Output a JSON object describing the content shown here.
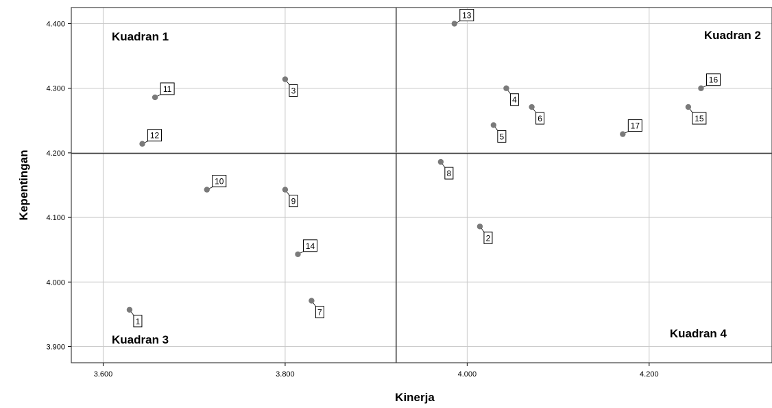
{
  "chart_data": {
    "type": "scatter",
    "xlabel": "Kinerja",
    "ylabel": "Kepentingan",
    "xlim": [
      3.565,
      4.335
    ],
    "ylim": [
      3.875,
      4.425
    ],
    "x_ticks": [
      "3.600",
      "3.800",
      "4.000",
      "4.200"
    ],
    "y_ticks": [
      "3.900",
      "4.000",
      "4.100",
      "4.200",
      "4.300",
      "4.400"
    ],
    "x_tick_values": [
      3.6,
      3.8,
      4.0,
      4.2
    ],
    "y_tick_values": [
      3.9,
      4.0,
      4.1,
      4.2,
      4.3,
      4.4
    ],
    "grid": true,
    "reference_lines": {
      "x": 3.922,
      "y": 4.199
    },
    "quadrants": [
      {
        "label": "Kuadran 1",
        "position": "top-left"
      },
      {
        "label": "Kuadran 2",
        "position": "top-right"
      },
      {
        "label": "Kuadran 3",
        "position": "bottom-left"
      },
      {
        "label": "Kuadran 4",
        "position": "bottom-right"
      }
    ],
    "points": [
      {
        "label": "1",
        "x": 3.629,
        "y": 3.957,
        "label_pos": "below"
      },
      {
        "label": "2",
        "x": 4.014,
        "y": 4.086,
        "label_pos": "below"
      },
      {
        "label": "3",
        "x": 3.8,
        "y": 4.314,
        "label_pos": "below"
      },
      {
        "label": "4",
        "x": 4.043,
        "y": 4.3,
        "label_pos": "below"
      },
      {
        "label": "5",
        "x": 4.029,
        "y": 4.243,
        "label_pos": "below"
      },
      {
        "label": "6",
        "x": 4.071,
        "y": 4.271,
        "label_pos": "below"
      },
      {
        "label": "7",
        "x": 3.829,
        "y": 3.971,
        "label_pos": "below"
      },
      {
        "label": "8",
        "x": 3.971,
        "y": 4.186,
        "label_pos": "below"
      },
      {
        "label": "9",
        "x": 3.8,
        "y": 4.143,
        "label_pos": "below"
      },
      {
        "label": "10",
        "x": 3.714,
        "y": 4.143,
        "label_pos": "above"
      },
      {
        "label": "11",
        "x": 3.657,
        "y": 4.286,
        "label_pos": "above"
      },
      {
        "label": "12",
        "x": 3.643,
        "y": 4.214,
        "label_pos": "above"
      },
      {
        "label": "13",
        "x": 3.986,
        "y": 4.4,
        "label_pos": "above"
      },
      {
        "label": "14",
        "x": 3.814,
        "y": 4.043,
        "label_pos": "above"
      },
      {
        "label": "15",
        "x": 4.243,
        "y": 4.271,
        "label_pos": "below"
      },
      {
        "label": "16",
        "x": 4.257,
        "y": 4.3,
        "label_pos": "above"
      },
      {
        "label": "17",
        "x": 4.171,
        "y": 4.229,
        "label_pos": "above"
      }
    ],
    "colors": {
      "marker": "#7a7a7a",
      "grid": "#c8c8c8",
      "frame": "#404040",
      "reference": "#303030"
    }
  }
}
